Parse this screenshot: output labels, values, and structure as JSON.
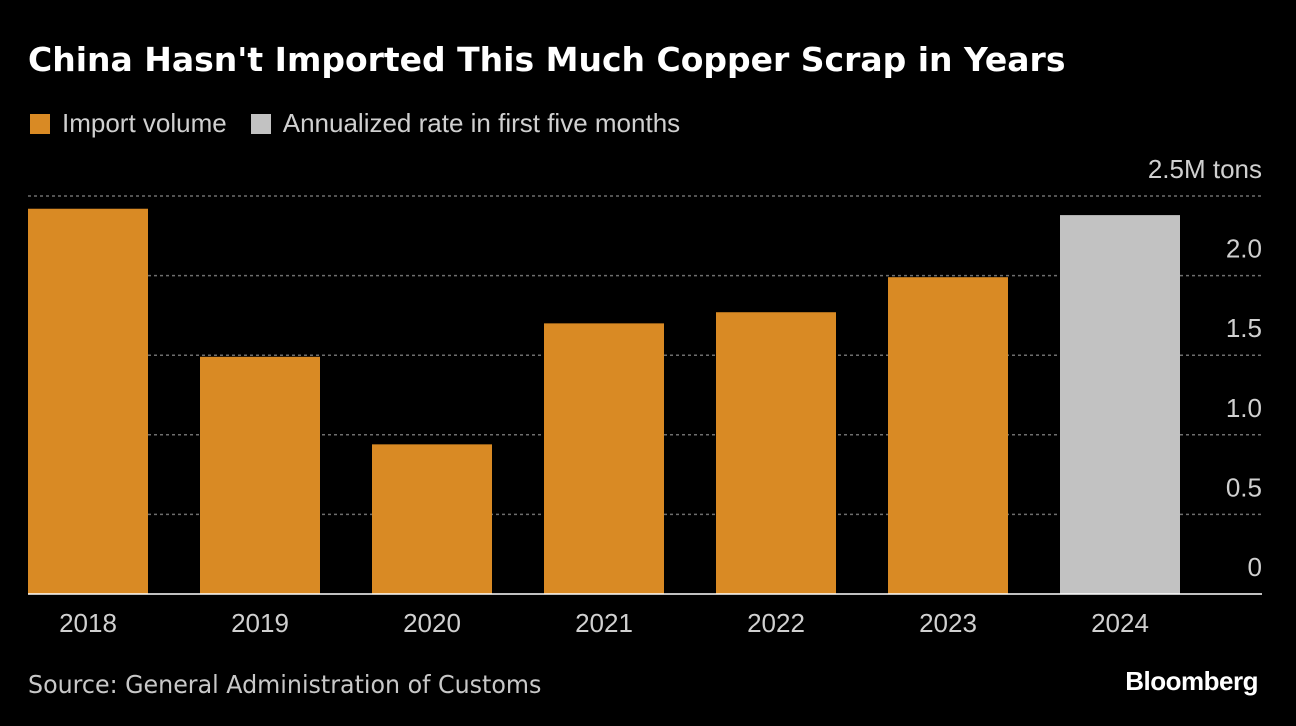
{
  "chart_data": {
    "type": "bar",
    "title": "China Hasn't Imported This Much Copper Scrap in Years",
    "legend": [
      {
        "label": "Import volume",
        "color": "#D98A24"
      },
      {
        "label": "Annualized rate in first five months",
        "color": "#C2C2C2"
      }
    ],
    "categories": [
      "2018",
      "2019",
      "2020",
      "2021",
      "2022",
      "2023",
      "2024"
    ],
    "values": [
      2.42,
      1.49,
      0.94,
      1.7,
      1.77,
      1.99,
      2.38
    ],
    "bar_colors": [
      "#D98A24",
      "#D98A24",
      "#D98A24",
      "#D98A24",
      "#D98A24",
      "#D98A24",
      "#C2C2C2"
    ],
    "y_ticks": [
      "0",
      "0.5",
      "1.0",
      "1.5",
      "2.0",
      "2.5M tons"
    ],
    "y_tick_values": [
      0,
      0.5,
      1.0,
      1.5,
      2.0,
      2.5
    ],
    "ylim": [
      0,
      2.5
    ],
    "xlabel": "",
    "ylabel": "",
    "grid": true,
    "legend_position": "top-left"
  },
  "source": "Source: General Administration of Customs",
  "brand": "Bloomberg",
  "colors": {
    "background": "#000000",
    "grid": "#6e6e6e",
    "axis": "#ffffff",
    "tick_text": "#d0d0d0"
  }
}
